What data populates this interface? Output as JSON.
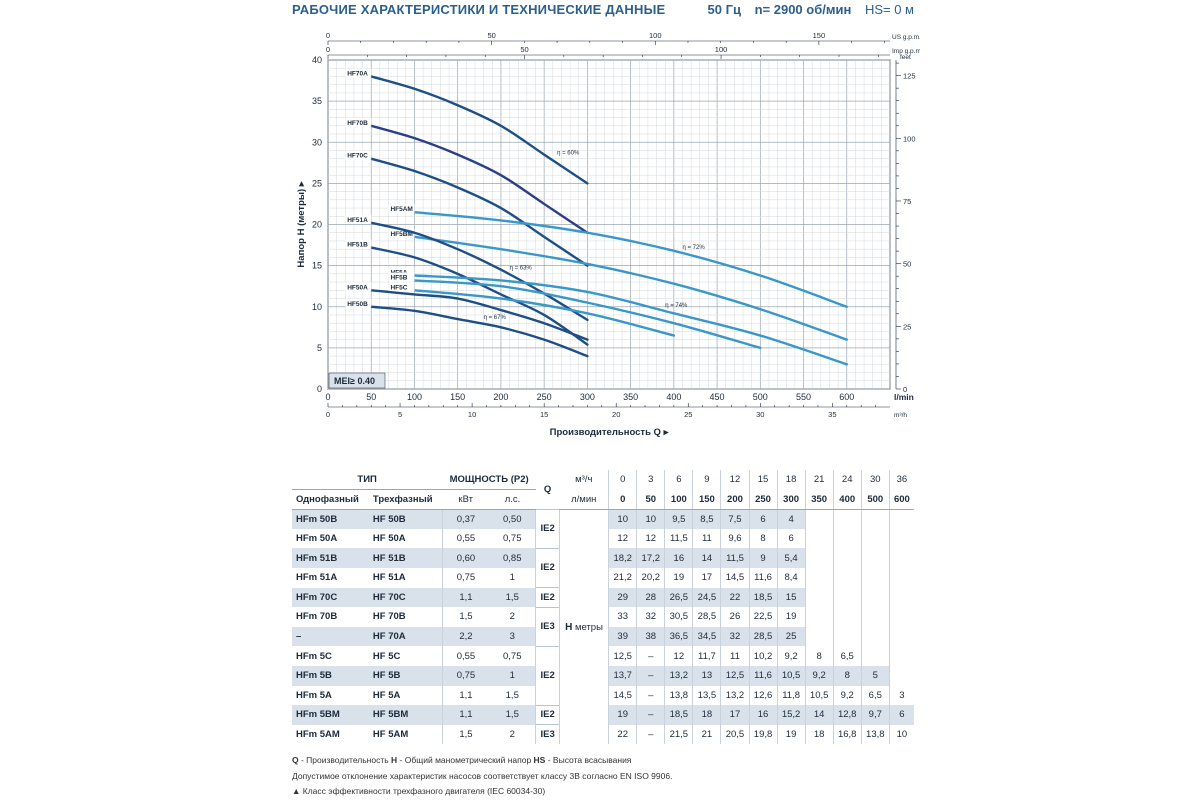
{
  "header": {
    "title": "РАБОЧИЕ ХАРАКТЕРИСТИКИ И ТЕХНИЧЕСКИЕ ДАННЫЕ",
    "freq": "50 Гц",
    "speed": "n= 2900 об/мин",
    "hs": "HS= 0 м"
  },
  "chart_data": {
    "type": "line",
    "title": "Рабочие характеристики",
    "xlabel": "Производительность Q ▸",
    "ylabel": "Напор H (метры) ▸",
    "x_unit": "l/min",
    "x_unit_m3": "m³/h",
    "usgpm_unit": "US g.p.m.",
    "impgpm_unit": "Imp g.p.m.",
    "feet_unit": "feet",
    "mei": "MEI≥ 0.40",
    "xlim": [
      0,
      650
    ],
    "ylim": [
      0,
      40
    ],
    "x_ticks": [
      0,
      50,
      100,
      150,
      200,
      250,
      300,
      350,
      400,
      450,
      500,
      550,
      600
    ],
    "y_ticks": [
      0,
      5,
      10,
      15,
      20,
      25,
      30,
      35,
      40
    ],
    "m3h_ticks": [
      0,
      5,
      10,
      15,
      20,
      25,
      30,
      35
    ],
    "usgpm_ticks": [
      0,
      50,
      100,
      150
    ],
    "impgpm_ticks": [
      0,
      50,
      100
    ],
    "feet_ticks": [
      0,
      25,
      50,
      75,
      100,
      125
    ],
    "efficiency_labels": [
      {
        "text": "η = 60%",
        "x": 265,
        "y": 28.5
      },
      {
        "text": "η = 72%",
        "x": 410,
        "y": 17
      },
      {
        "text": "η = 63%",
        "x": 210,
        "y": 14.5
      },
      {
        "text": "η = 74%",
        "x": 390,
        "y": 10
      },
      {
        "text": "η = 67%",
        "x": 180,
        "y": 8.5
      }
    ],
    "series": [
      {
        "name": "HF70A",
        "color": "#1d4f86",
        "x": [
          50,
          100,
          150,
          200,
          250,
          300
        ],
        "y": [
          38,
          36.5,
          34.5,
          32,
          28.5,
          25
        ]
      },
      {
        "name": "HF70B",
        "color": "#2c3e88",
        "x": [
          50,
          100,
          150,
          200,
          250,
          300
        ],
        "y": [
          32,
          30.5,
          28.5,
          26,
          22.5,
          19
        ]
      },
      {
        "name": "HF70C",
        "color": "#1d4f86",
        "x": [
          50,
          100,
          150,
          200,
          250,
          300
        ],
        "y": [
          28,
          26.5,
          24.5,
          22,
          18.5,
          15
        ]
      },
      {
        "name": "HF5AM",
        "color": "#3a97c9",
        "x": [
          100,
          200,
          300,
          400,
          500,
          600
        ],
        "y": [
          21.5,
          20.5,
          19,
          16.8,
          13.8,
          10
        ]
      },
      {
        "name": "HF5BM",
        "color": "#3a97c9",
        "x": [
          100,
          200,
          300,
          400,
          500,
          600
        ],
        "y": [
          18.5,
          17,
          15.2,
          12.8,
          9.7,
          6
        ]
      },
      {
        "name": "HF51A",
        "color": "#1d4f86",
        "x": [
          50,
          100,
          150,
          200,
          250,
          300
        ],
        "y": [
          20.2,
          19,
          17,
          14.5,
          11.6,
          8.4
        ]
      },
      {
        "name": "HF51B",
        "color": "#1d4f86",
        "x": [
          50,
          100,
          150,
          200,
          250,
          300
        ],
        "y": [
          17.2,
          16,
          14,
          11.5,
          9,
          5.4
        ]
      },
      {
        "name": "HF5A",
        "color": "#3a97c9",
        "x": [
          100,
          200,
          300,
          400,
          500,
          600
        ],
        "y": [
          13.8,
          13.2,
          11.8,
          9.2,
          6.5,
          3
        ]
      },
      {
        "name": "HF5B",
        "color": "#3a97c9",
        "x": [
          100,
          200,
          300,
          400,
          500
        ],
        "y": [
          13.2,
          12.5,
          10.5,
          8,
          5
        ]
      },
      {
        "name": "HF5C",
        "color": "#3a97c9",
        "x": [
          100,
          200,
          300,
          400
        ],
        "y": [
          12,
          11,
          9.2,
          6.5
        ]
      },
      {
        "name": "HF50A",
        "color": "#1d4f86",
        "x": [
          50,
          100,
          150,
          200,
          250,
          300
        ],
        "y": [
          12,
          11.5,
          11,
          9.6,
          8,
          6
        ]
      },
      {
        "name": "HF50B",
        "color": "#1d4f86",
        "x": [
          50,
          100,
          150,
          200,
          250,
          300
        ],
        "y": [
          10,
          9.5,
          8.5,
          7.5,
          6,
          4
        ]
      }
    ]
  },
  "table": {
    "head": {
      "type": "ТИП",
      "power": "МОЩНОСТЬ (P2)",
      "single": "Однофазный",
      "three": "Трехфазный",
      "kw": "кВт",
      "hp": "л.с.",
      "q": "Q",
      "m3h": "м³/ч",
      "lmin": "л/мин",
      "m3h_values": [
        "0",
        "3",
        "6",
        "9",
        "12",
        "15",
        "18",
        "21",
        "24",
        "30",
        "36"
      ],
      "lmin_values": [
        "0",
        "50",
        "100",
        "150",
        "200",
        "250",
        "300",
        "350",
        "400",
        "500",
        "600"
      ],
      "h_label": "H",
      "h_unit": "метры"
    },
    "rows": [
      {
        "single": "HFm 50B",
        "three": "HF 50B",
        "kw": "0,37",
        "hp": "0,50",
        "ie": "IE2",
        "values": [
          "10",
          "10",
          "9,5",
          "8,5",
          "7,5",
          "6",
          "4",
          "",
          "",
          "",
          ""
        ]
      },
      {
        "single": "HFm 50A",
        "three": "HF 50A",
        "kw": "0,55",
        "hp": "0,75",
        "ie": "",
        "values": [
          "12",
          "12",
          "11,5",
          "11",
          "9,6",
          "8",
          "6",
          "",
          "",
          "",
          ""
        ]
      },
      {
        "single": "HFm 51B",
        "three": "HF 51B",
        "kw": "0,60",
        "hp": "0,85",
        "ie": "IE2",
        "values": [
          "18,2",
          "17,2",
          "16",
          "14",
          "11,5",
          "9",
          "5,4",
          "",
          "",
          "",
          ""
        ]
      },
      {
        "single": "HFm 51A",
        "three": "HF 51A",
        "kw": "0,75",
        "hp": "1",
        "ie": "",
        "values": [
          "21,2",
          "20,2",
          "19",
          "17",
          "14,5",
          "11,6",
          "8,4",
          "",
          "",
          "",
          ""
        ]
      },
      {
        "single": "HFm 70C",
        "three": "HF 70C",
        "kw": "1,1",
        "hp": "1,5",
        "ie": "IE2",
        "values": [
          "29",
          "28",
          "26,5",
          "24,5",
          "22",
          "18,5",
          "15",
          "",
          "",
          "",
          ""
        ]
      },
      {
        "single": "HFm 70B",
        "three": "HF 70B",
        "kw": "1,5",
        "hp": "2",
        "ie": "IE3",
        "values": [
          "33",
          "32",
          "30,5",
          "28,5",
          "26",
          "22,5",
          "19",
          "",
          "",
          "",
          ""
        ]
      },
      {
        "single": "–",
        "three": "HF 70A",
        "kw": "2,2",
        "hp": "3",
        "ie": "",
        "values": [
          "39",
          "38",
          "36,5",
          "34,5",
          "32",
          "28,5",
          "25",
          "",
          "",
          "",
          ""
        ]
      },
      {
        "single": "HFm 5C",
        "three": "HF 5C",
        "kw": "0,55",
        "hp": "0,75",
        "ie": "IE2",
        "values": [
          "12,5",
          "–",
          "12",
          "11,7",
          "11",
          "10,2",
          "9,2",
          "8",
          "6,5",
          "",
          ""
        ]
      },
      {
        "single": "HFm 5B",
        "three": "HF 5B",
        "kw": "0,75",
        "hp": "1",
        "ie": "",
        "values": [
          "13,7",
          "–",
          "13,2",
          "13",
          "12,5",
          "11,6",
          "10,5",
          "9,2",
          "8",
          "5",
          ""
        ]
      },
      {
        "single": "HFm 5A",
        "three": "HF 5A",
        "kw": "1,1",
        "hp": "1,5",
        "ie": "",
        "values": [
          "14,5",
          "–",
          "13,8",
          "13,5",
          "13,2",
          "12,6",
          "11,8",
          "10,5",
          "9,2",
          "6,5",
          "3"
        ]
      },
      {
        "single": "HFm 5BM",
        "three": "HF 5BM",
        "kw": "1,1",
        "hp": "1,5",
        "ie": "IE2",
        "values": [
          "19",
          "–",
          "18,5",
          "18",
          "17",
          "16",
          "15,2",
          "14",
          "12,8",
          "9,7",
          "6"
        ]
      },
      {
        "single": "HFm 5AM",
        "three": "HF 5AM",
        "kw": "1,5",
        "hp": "2",
        "ie": "IE3",
        "values": [
          "22",
          "–",
          "21,5",
          "21",
          "20,5",
          "19,8",
          "19",
          "18",
          "16,8",
          "13,8",
          "10"
        ]
      }
    ]
  },
  "footer": {
    "legend_q": "Q",
    "legend_q_text": " - Производительность ",
    "legend_h": "H",
    "legend_h_text": " - Общий манометрический напор ",
    "legend_hs": "HS",
    "legend_hs_text": " - Высота всасывания",
    "tolerance": "Допустимое отклонение характеристик насосов соответствует классу 3В согласно EN ISO 9906.",
    "ie_note": "▲ Класс эффективности трехфазного двигателя (IEC 60034-30)"
  }
}
